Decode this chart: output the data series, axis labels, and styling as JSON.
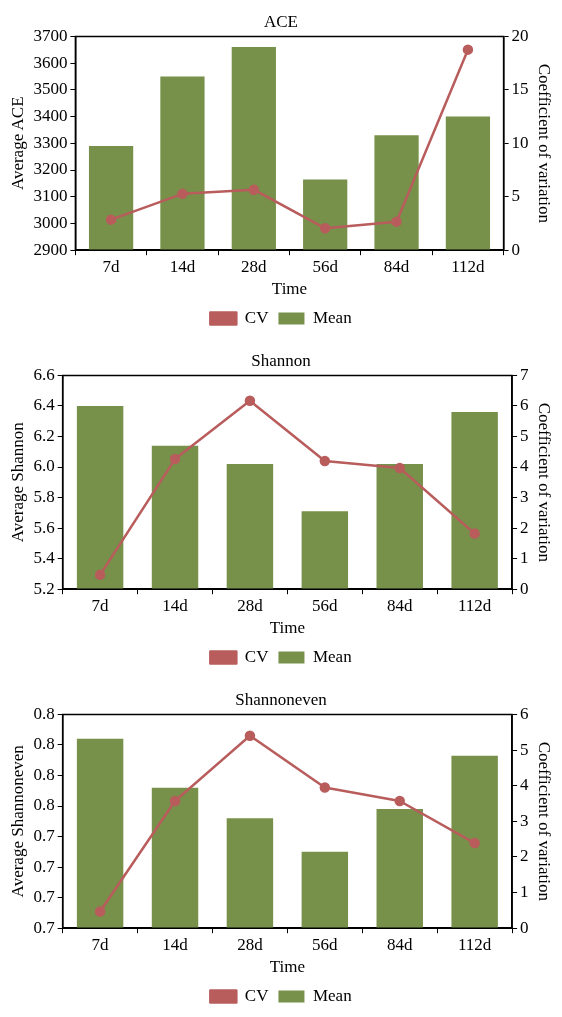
{
  "chart_data": [
    {
      "type": "bar",
      "title": "ACE",
      "xlabel": "Time",
      "ylabel": "Average ACE",
      "y2label": "Coefficient of variation",
      "categories": [
        "7d",
        "14d",
        "28d",
        "56d",
        "84d",
        "112d"
      ],
      "series": [
        {
          "name": "Mean",
          "color": "#77904a",
          "values": [
            3290,
            3550,
            3660,
            3165,
            3330,
            3400
          ]
        },
        {
          "name": "CV",
          "type": "line",
          "axis": "y2",
          "color": "#b85c5c",
          "values": [
            2.86,
            5.27,
            5.66,
            2.05,
            2.67,
            18.76
          ]
        }
      ],
      "ylim": [
        2900,
        3700
      ],
      "yticks": [
        2900,
        3000,
        3100,
        3200,
        3300,
        3400,
        3500,
        3600,
        3700
      ],
      "y2lim": [
        0,
        20
      ],
      "y2ticks": [
        0,
        5,
        10,
        15,
        20
      ],
      "grid": false,
      "legend": "bottom",
      "marker": "circle"
    },
    {
      "type": "bar",
      "title": "Shannon",
      "xlabel": "Time",
      "ylabel": "Average Shannon",
      "y2label": "Coefficient of variation",
      "categories": [
        "7d",
        "14d",
        "28d",
        "56d",
        "84d",
        "112d"
      ],
      "series": [
        {
          "name": "Mean",
          "color": "#77904a",
          "values": [
            6.4,
            6.14,
            6.02,
            5.71,
            6.02,
            6.36
          ]
        },
        {
          "name": "CV",
          "type": "line",
          "axis": "y2",
          "color": "#b85c5c",
          "values": [
            0.47,
            4.26,
            6.17,
            4.2,
            3.97,
            1.82
          ]
        }
      ],
      "ylim": [
        5.2,
        6.6
      ],
      "yticks": [
        {
          "value": 5.2,
          "label": "5.2"
        },
        {
          "value": 5.4,
          "label": "5.4"
        },
        {
          "value": 5.6,
          "label": "5.6"
        },
        {
          "value": 5.8,
          "label": "5.8"
        },
        {
          "value": 6.0,
          "label": "6.0"
        },
        {
          "value": 6.2,
          "label": "6.2"
        },
        {
          "value": 6.4,
          "label": "6.4"
        },
        {
          "value": 6.6,
          "label": "6.6"
        }
      ],
      "y2lim": [
        0,
        7
      ],
      "y2ticks": [
        0,
        1,
        2,
        3,
        4,
        5,
        6,
        7
      ],
      "grid": false,
      "legend": "bottom",
      "marker": "circle"
    },
    {
      "type": "bar",
      "title": "Shannoneven",
      "xlabel": "Time",
      "ylabel": "Average Shannoneven",
      "y2label": "Coefficient of variation",
      "categories": [
        "7d",
        "14d",
        "28d",
        "56d",
        "84d",
        "112d"
      ],
      "series": [
        {
          "name": "Mean",
          "color": "#77904a",
          "values": [
            0.804,
            0.772,
            0.752,
            0.73,
            0.758,
            0.793
          ]
        },
        {
          "name": "CV",
          "type": "line",
          "axis": "y2",
          "color": "#b85c5c",
          "values": [
            0.47,
            3.57,
            5.4,
            3.95,
            3.57,
            2.39
          ]
        }
      ],
      "ylim": [
        0.68,
        0.82
      ],
      "yticks": [
        {
          "value": 0.68,
          "label": "0.7"
        },
        {
          "value": 0.7,
          "label": "0.7"
        },
        {
          "value": 0.72,
          "label": "0.7"
        },
        {
          "value": 0.74,
          "label": "0.7"
        },
        {
          "value": 0.76,
          "label": "0.8"
        },
        {
          "value": 0.78,
          "label": "0.8"
        },
        {
          "value": 0.8,
          "label": "0.8"
        },
        {
          "value": 0.82,
          "label": "0.8"
        }
      ],
      "y2lim": [
        0,
        6
      ],
      "y2ticks": [
        0,
        1,
        2,
        3,
        4,
        5,
        6
      ],
      "grid": false,
      "legend": "bottom",
      "marker": "circle"
    }
  ]
}
